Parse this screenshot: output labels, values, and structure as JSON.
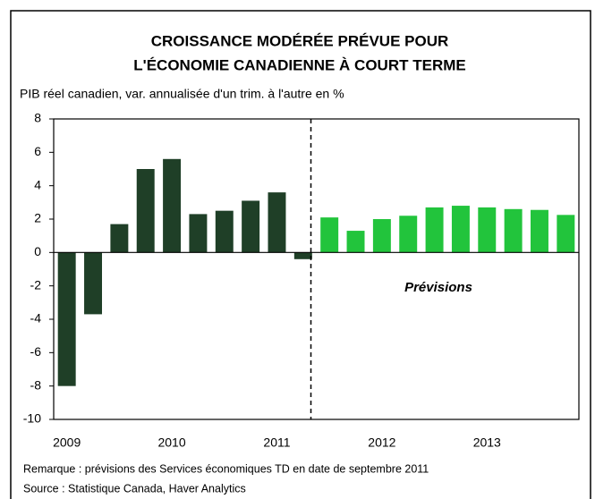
{
  "chart_data": {
    "type": "bar",
    "title": [
      "CROISSANCE MODÉRÉE PRÉVUE POUR",
      "L'ÉCONOMIE CANADIENNE À COURT TERME"
    ],
    "subtitle": "PIB réel canadien, var. annualisée d'un trim. à l'autre en %",
    "annotation": "Prévisions",
    "notes": [
      "Remarque : prévisions des Services économiques TD en date de septembre 2011",
      "Source : Statistique Canada, Haver Analytics"
    ],
    "categories": [
      "2009",
      null,
      null,
      null,
      "2010",
      null,
      null,
      null,
      "2011",
      null,
      null,
      null,
      "2012",
      null,
      null,
      null,
      "2013",
      null,
      null,
      null
    ],
    "values": [
      -8.0,
      -3.7,
      1.7,
      5.0,
      5.6,
      2.3,
      2.5,
      3.1,
      3.6,
      -0.4,
      2.1,
      1.3,
      2.0,
      2.2,
      2.7,
      2.8,
      2.7,
      2.6,
      2.55,
      2.25
    ],
    "colors": [
      "#1f3f27",
      "#1f3f27",
      "#1f3f27",
      "#1f3f27",
      "#1f3f27",
      "#1f3f27",
      "#1f3f27",
      "#1f3f27",
      "#1f3f27",
      "#1f3f27",
      "#22c43c",
      "#22c43c",
      "#22c43c",
      "#22c43c",
      "#22c43c",
      "#22c43c",
      "#22c43c",
      "#22c43c",
      "#22c43c",
      "#22c43c"
    ],
    "ylim": [
      -10,
      8
    ],
    "yticks": [
      -10,
      -8,
      -6,
      -4,
      -2,
      0,
      2,
      4,
      6,
      8
    ]
  }
}
